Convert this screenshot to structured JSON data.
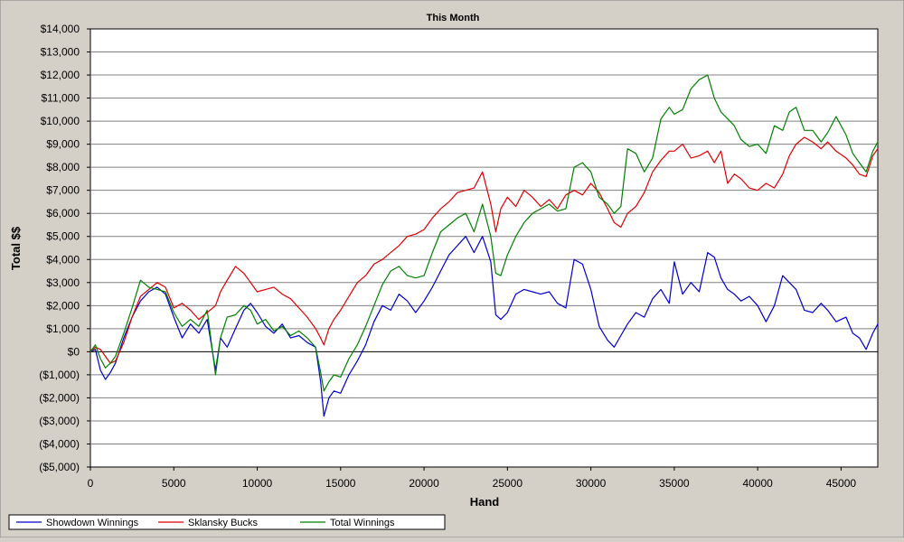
{
  "chart_data": {
    "type": "line",
    "title": "This Month",
    "xlabel": "Hand",
    "ylabel": "Total $$",
    "xlim": [
      0,
      47200
    ],
    "ylim": [
      -5000,
      14000
    ],
    "xticks": [
      0,
      5000,
      10000,
      15000,
      20000,
      25000,
      30000,
      35000,
      40000,
      45000
    ],
    "xtick_labels": [
      "0",
      "5000",
      "10000",
      "15000",
      "20000",
      "25000",
      "30000",
      "35000",
      "40000",
      "45000"
    ],
    "yticks": [
      -5000,
      -4000,
      -3000,
      -2000,
      -1000,
      0,
      1000,
      2000,
      3000,
      4000,
      5000,
      6000,
      7000,
      8000,
      9000,
      10000,
      11000,
      12000,
      13000,
      14000
    ],
    "ytick_labels": [
      "($5,000)",
      "($4,000)",
      "($3,000)",
      "($2,000)",
      "($1,000)",
      "$0",
      "$1,000",
      "$2,000",
      "$3,000",
      "$4,000",
      "$5,000",
      "$6,000",
      "$7,000",
      "$8,000",
      "$9,000",
      "$10,000",
      "$11,000",
      "$12,000",
      "$13,000",
      "$14,000"
    ],
    "grid": "horizontal",
    "legend_position": "bottom-left",
    "series": [
      {
        "name": "Showdown Winnings",
        "color": "#0000cc",
        "x": [
          0,
          300,
          600,
          900,
          1200,
          1500,
          2000,
          2500,
          3000,
          3500,
          4000,
          4500,
          5000,
          5500,
          6000,
          6500,
          7000,
          7500,
          7800,
          8200,
          8700,
          9200,
          9600,
          10000,
          10500,
          11000,
          11500,
          12000,
          12500,
          13000,
          13500,
          13800,
          14000,
          14300,
          14600,
          15000,
          15500,
          16000,
          16500,
          17000,
          17500,
          18000,
          18500,
          19000,
          19500,
          20000,
          20500,
          21000,
          21500,
          22000,
          22500,
          23000,
          23500,
          24000,
          24300,
          24600,
          25000,
          25500,
          26000,
          26500,
          27000,
          27500,
          28000,
          28500,
          29000,
          29500,
          30000,
          30500,
          31000,
          31400,
          31800,
          32200,
          32700,
          33200,
          33700,
          34200,
          34700,
          35000,
          35500,
          36000,
          36500,
          37000,
          37400,
          37800,
          38200,
          38600,
          39000,
          39500,
          40000,
          40500,
          41000,
          41500,
          41900,
          42300,
          42800,
          43300,
          43800,
          44200,
          44700,
          45300,
          45700,
          46100,
          46500,
          46900,
          47200
        ],
        "y": [
          0,
          100,
          -800,
          -1200,
          -900,
          -500,
          600,
          1500,
          2200,
          2600,
          2800,
          2500,
          1500,
          600,
          1200,
          800,
          1400,
          -800,
          600,
          200,
          1000,
          1800,
          2100,
          1700,
          1100,
          800,
          1200,
          600,
          700,
          400,
          200,
          -1300,
          -2800,
          -2000,
          -1700,
          -1800,
          -1000,
          -400,
          300,
          1300,
          2000,
          1800,
          2500,
          2200,
          1700,
          2200,
          2800,
          3500,
          4200,
          4600,
          5000,
          4300,
          5000,
          3900,
          1600,
          1400,
          1700,
          2500,
          2700,
          2600,
          2500,
          2600,
          2100,
          1900,
          4000,
          3800,
          2700,
          1100,
          500,
          200,
          700,
          1200,
          1700,
          1500,
          2300,
          2700,
          2100,
          3900,
          2500,
          3000,
          2600,
          4300,
          4100,
          3200,
          2700,
          2500,
          2200,
          2400,
          2000,
          1300,
          2000,
          3300,
          3000,
          2700,
          1800,
          1700,
          2100,
          1800,
          1300,
          1500,
          800,
          600,
          100,
          800,
          1200
        ]
      },
      {
        "name": "Sklansky Bucks",
        "color": "#dd0000",
        "x": [
          0,
          300,
          600,
          900,
          1200,
          1500,
          2000,
          2500,
          3000,
          3500,
          4000,
          4500,
          5000,
          5500,
          6000,
          6500,
          7000,
          7500,
          7800,
          8200,
          8700,
          9200,
          9600,
          10000,
          10500,
          11000,
          11500,
          12000,
          12500,
          13000,
          13500,
          13800,
          14000,
          14300,
          14600,
          15000,
          15500,
          16000,
          16500,
          17000,
          17500,
          18000,
          18500,
          19000,
          19500,
          20000,
          20500,
          21000,
          21500,
          22000,
          22500,
          23000,
          23500,
          24000,
          24300,
          24600,
          25000,
          25500,
          26000,
          26500,
          27000,
          27500,
          28000,
          28500,
          29000,
          29500,
          30000,
          30500,
          31000,
          31400,
          31800,
          32200,
          32700,
          33200,
          33700,
          34200,
          34700,
          35000,
          35500,
          36000,
          36500,
          37000,
          37400,
          37800,
          38200,
          38600,
          39000,
          39500,
          40000,
          40500,
          41000,
          41500,
          41900,
          42300,
          42800,
          43300,
          43800,
          44200,
          44700,
          45300,
          45700,
          46100,
          46500,
          46900,
          47200
        ],
        "y": [
          0,
          200,
          100,
          -200,
          -500,
          -400,
          400,
          1500,
          2400,
          2700,
          3000,
          2800,
          1900,
          2100,
          1800,
          1400,
          1700,
          2000,
          2600,
          3100,
          3700,
          3400,
          3000,
          2600,
          2700,
          2800,
          2500,
          2300,
          1900,
          1500,
          1000,
          600,
          300,
          1000,
          1400,
          1800,
          2400,
          3000,
          3300,
          3800,
          4000,
          4300,
          4600,
          5000,
          5100,
          5300,
          5800,
          6200,
          6500,
          6900,
          7000,
          7100,
          7800,
          6400,
          5200,
          6200,
          6700,
          6300,
          7000,
          6700,
          6300,
          6600,
          6200,
          6800,
          7000,
          6800,
          7300,
          6900,
          6200,
          5600,
          5400,
          6000,
          6300,
          6900,
          7800,
          8300,
          8700,
          8700,
          9000,
          8400,
          8500,
          8700,
          8200,
          8700,
          7300,
          7700,
          7500,
          7100,
          7000,
          7300,
          7100,
          7700,
          8500,
          9000,
          9300,
          9100,
          8800,
          9100,
          8700,
          8400,
          8100,
          7700,
          7600,
          8500,
          8800
        ]
      },
      {
        "name": "Total Winnings",
        "color": "#008000",
        "x": [
          0,
          300,
          600,
          900,
          1200,
          1500,
          2000,
          2500,
          3000,
          3500,
          4000,
          4500,
          5000,
          5500,
          6000,
          6500,
          7000,
          7500,
          7800,
          8200,
          8700,
          9200,
          9600,
          10000,
          10500,
          11000,
          11500,
          12000,
          12500,
          13000,
          13500,
          13800,
          14000,
          14300,
          14600,
          15000,
          15500,
          16000,
          16500,
          17000,
          17500,
          18000,
          18500,
          19000,
          19500,
          20000,
          20500,
          21000,
          21500,
          22000,
          22500,
          23000,
          23500,
          24000,
          24300,
          24600,
          25000,
          25500,
          26000,
          26500,
          27000,
          27500,
          28000,
          28500,
          29000,
          29500,
          30000,
          30500,
          31000,
          31400,
          31800,
          32200,
          32700,
          33200,
          33700,
          34200,
          34700,
          35000,
          35500,
          36000,
          36500,
          37000,
          37400,
          37800,
          38200,
          38600,
          39000,
          39500,
          40000,
          40500,
          41000,
          41500,
          41900,
          42300,
          42800,
          43300,
          43800,
          44200,
          44700,
          45300,
          45700,
          46100,
          46500,
          46900,
          47200
        ],
        "y": [
          0,
          300,
          -300,
          -700,
          -500,
          -200,
          800,
          1900,
          3100,
          2800,
          2700,
          2600,
          1700,
          1100,
          1400,
          1100,
          1800,
          -1000,
          600,
          1500,
          1600,
          2000,
          1800,
          1200,
          1400,
          900,
          1100,
          700,
          900,
          600,
          200,
          -900,
          -1700,
          -1300,
          -1000,
          -1100,
          -300,
          300,
          1100,
          2000,
          2900,
          3500,
          3700,
          3300,
          3200,
          3300,
          4300,
          5200,
          5500,
          5800,
          6000,
          5200,
          6400,
          5000,
          3400,
          3300,
          4200,
          5000,
          5600,
          6000,
          6200,
          6400,
          6100,
          6200,
          8000,
          8200,
          7800,
          6700,
          6400,
          6000,
          6300,
          8800,
          8600,
          7800,
          8400,
          10100,
          10600,
          10300,
          10500,
          11400,
          11800,
          12000,
          11000,
          10400,
          10100,
          9800,
          9200,
          8900,
          9000,
          8600,
          9800,
          9600,
          10400,
          10600,
          9600,
          9600,
          9100,
          9500,
          10200,
          9400,
          8600,
          8200,
          7800,
          8700,
          9100
        ]
      }
    ]
  }
}
